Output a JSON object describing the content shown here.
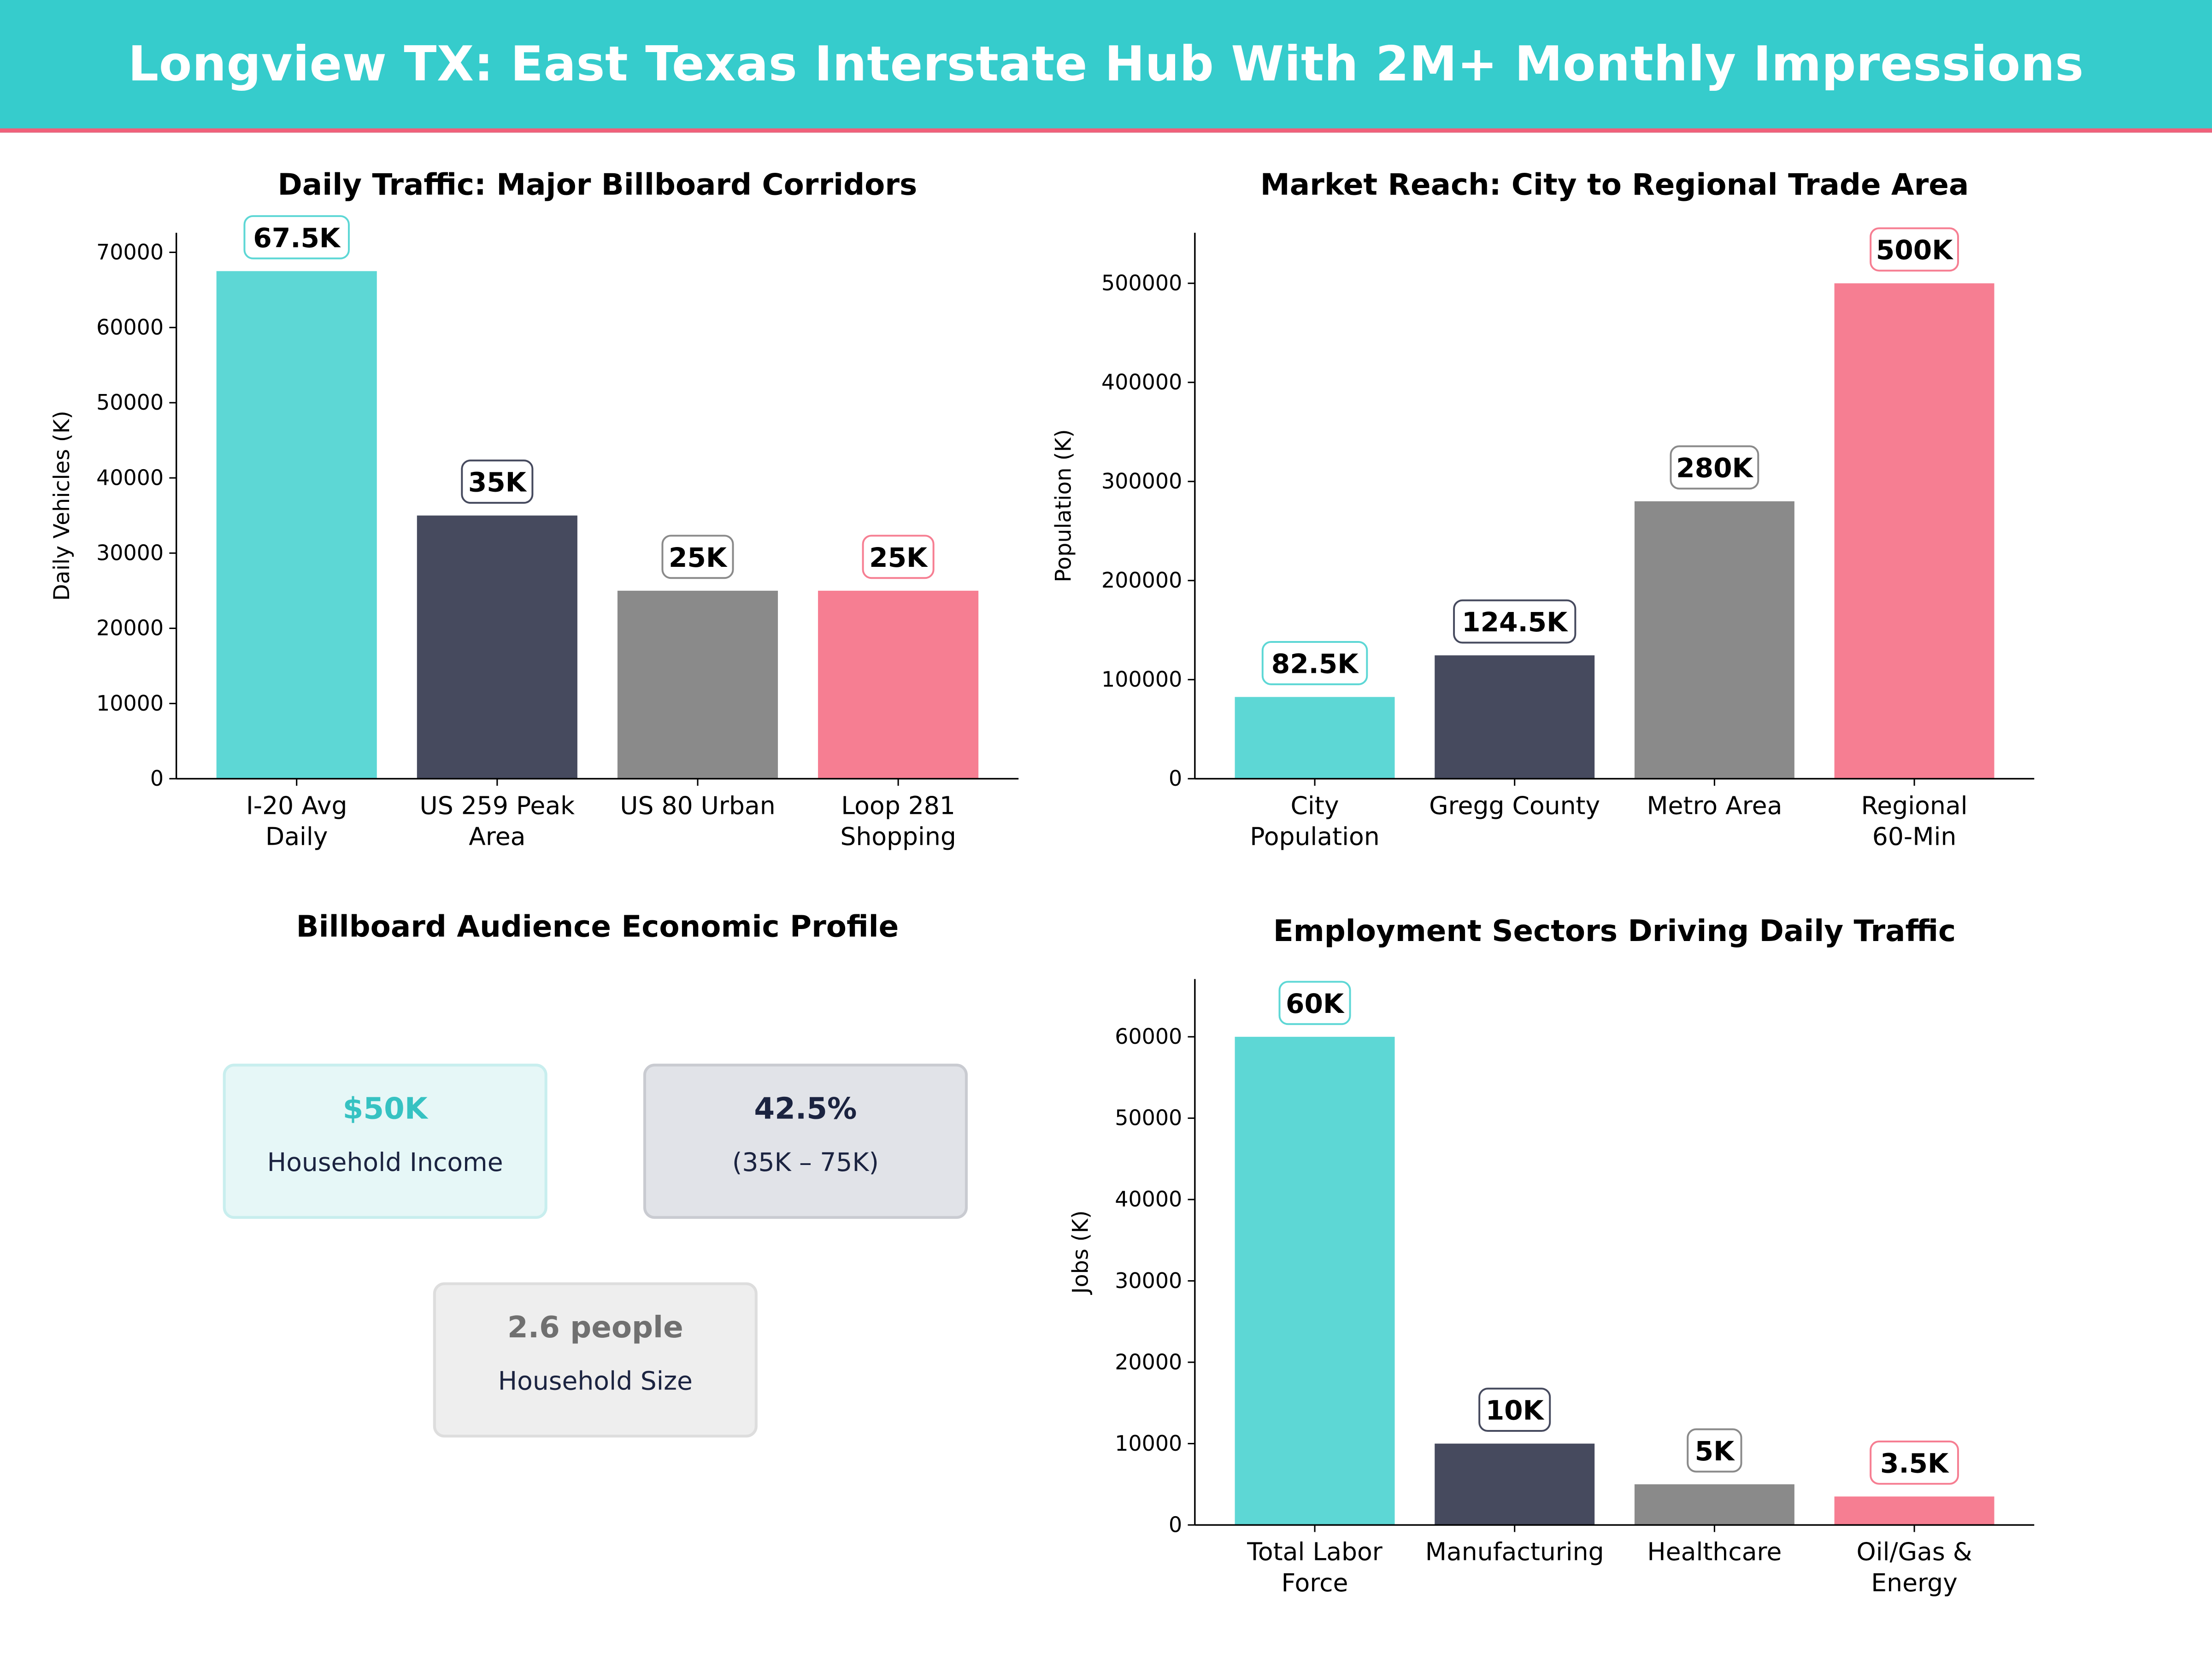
{
  "header": {
    "title": "Longview TX: East Texas Interstate Hub With 2M+ Monthly Impressions"
  },
  "colors": {
    "header_bg": "#36CCCC",
    "header_rule": "#F0607A",
    "teal": "#5DD7D5",
    "navy": "#464A5E",
    "gray": "#8A8A8A",
    "pink": "#F67E92"
  },
  "profile": {
    "title": "Billboard Audience Economic Profile",
    "cards": [
      {
        "value": "$50K",
        "label": "Household Income"
      },
      {
        "value": "42.5%",
        "label": "(35K – 75K)"
      },
      {
        "value": "2.6 people",
        "label": "Household Size"
      }
    ]
  },
  "chart_data": [
    {
      "type": "bar",
      "title": "Daily Traffic: Major Billboard Corridors",
      "xlabel": "",
      "ylabel": "Daily Vehicles (K)",
      "categories": [
        "I-20 Avg\nDaily",
        "US 259 Peak\nArea",
        "US 80 Urban",
        "Loop 281\nShopping"
      ],
      "values": [
        67500,
        35000,
        25000,
        25000
      ],
      "data_labels": [
        "67.5K",
        "35K",
        "25K",
        "25K"
      ],
      "ylim": [
        0,
        72600
      ],
      "yticks": [
        0,
        10000,
        20000,
        30000,
        40000,
        50000,
        60000,
        70000
      ],
      "grid": false
    },
    {
      "type": "bar",
      "title": "Market Reach: City to Regional Trade Area",
      "xlabel": "",
      "ylabel": "Population (K)",
      "categories": [
        "City\nPopulation",
        "Gregg County",
        "Metro Area",
        "Regional\n60-Min"
      ],
      "values": [
        82500,
        124500,
        280000,
        500000
      ],
      "data_labels": [
        "82.5K",
        "124.5K",
        "280K",
        "500K"
      ],
      "ylim": [
        0,
        551000
      ],
      "yticks": [
        0,
        100000,
        200000,
        300000,
        400000,
        500000
      ],
      "grid": false
    },
    {
      "type": "bar",
      "title": "Employment Sectors Driving Daily Traffic",
      "xlabel": "",
      "ylabel": "Jobs (K)",
      "categories": [
        "Total Labor\nForce",
        "Manufacturing",
        "Healthcare",
        "Oil/Gas &\nEnergy"
      ],
      "values": [
        60000,
        10000,
        5000,
        3500
      ],
      "data_labels": [
        "60K",
        "10K",
        "5K",
        "3.5K"
      ],
      "ylim": [
        0,
        67100
      ],
      "yticks": [
        0,
        10000,
        20000,
        30000,
        40000,
        50000,
        60000
      ],
      "grid": false
    }
  ]
}
